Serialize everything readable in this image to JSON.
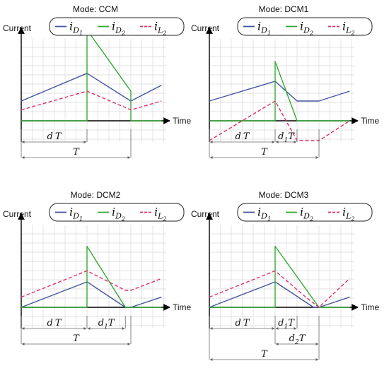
{
  "legend": [
    {
      "key": "iD1",
      "text": "i",
      "sub": "D",
      "subsub": "1",
      "color": "#4455a0",
      "dash": false
    },
    {
      "key": "iD2",
      "text": "i",
      "sub": "D",
      "subsub": "2",
      "color": "#33aa33",
      "dash": false
    },
    {
      "key": "iL2",
      "text": "i",
      "sub": "L",
      "subsub": "2",
      "color": "#e0306a",
      "dash": true
    }
  ],
  "colors": {
    "grid": "#d8d8d8",
    "axis": "#000000"
  },
  "chart_data": [
    {
      "type": "line",
      "title": "Mode: CCM",
      "xlabel": "Time",
      "ylabel": "Current",
      "grid": true,
      "legend_position": "top",
      "xlim": [
        0,
        1.28
      ],
      "ylim": [
        -0.2,
        1.2
      ],
      "series": [
        {
          "key": "iD1",
          "x": [
            0,
            0.6,
            1.0,
            1.28
          ],
          "y": [
            0.2,
            0.48,
            0.2,
            0.36
          ]
        },
        {
          "key": "iD2",
          "x": [
            0,
            0.6,
            0.6,
            1.0,
            1.0,
            1.28
          ],
          "y": [
            0,
            0,
            0.92,
            0.3,
            0,
            0
          ]
        },
        {
          "key": "iL2",
          "x": [
            0,
            0.6,
            1.0,
            1.28
          ],
          "y": [
            0.11,
            0.3,
            0.11,
            0.2
          ]
        }
      ],
      "dimensions": [
        {
          "label": "d",
          "sym": "T",
          "sub": "",
          "from": 0,
          "to": 0.6,
          "row": 1
        },
        {
          "label": "",
          "sym": "T",
          "sub": "",
          "from": 0,
          "to": 1.0,
          "row": 2
        }
      ]
    },
    {
      "type": "line",
      "title": "Mode: DCM1",
      "xlabel": "Time",
      "ylabel": "Current",
      "grid": true,
      "legend_position": "top",
      "xlim": [
        0,
        1.28
      ],
      "ylim": [
        -0.2,
        1.2
      ],
      "series": [
        {
          "key": "iD1",
          "x": [
            0,
            0.6,
            0.8,
            1.0,
            1.28
          ],
          "y": [
            0.2,
            0.4,
            0.2,
            0.2,
            0.3
          ]
        },
        {
          "key": "iD2",
          "x": [
            0,
            0.6,
            0.6,
            0.8,
            0.8,
            1.28
          ],
          "y": [
            0,
            0,
            0.6,
            0,
            0,
            0
          ]
        },
        {
          "key": "iL2",
          "x": [
            0,
            0.6,
            0.8,
            1.0,
            1.28
          ],
          "y": [
            -0.2,
            0.2,
            -0.2,
            -0.2,
            0
          ]
        }
      ],
      "dimensions": [
        {
          "label": "d",
          "sym": "T",
          "sub": "",
          "from": 0,
          "to": 0.6,
          "row": 1
        },
        {
          "label": "d",
          "sym": "T",
          "sub": "1",
          "from": 0.6,
          "to": 0.8,
          "row": 1
        },
        {
          "label": "",
          "sym": "T",
          "sub": "",
          "from": 0,
          "to": 1.0,
          "row": 2
        }
      ]
    },
    {
      "type": "line",
      "title": "Mode: DCM2",
      "xlabel": "Time",
      "ylabel": "Current",
      "grid": true,
      "legend_position": "top",
      "xlim": [
        0,
        1.28
      ],
      "ylim": [
        -0.2,
        1.2
      ],
      "series": [
        {
          "key": "iD1",
          "x": [
            0,
            0.6,
            0.95,
            1.0,
            1.28
          ],
          "y": [
            0,
            0.3,
            0,
            0,
            0.12
          ]
        },
        {
          "key": "iD2",
          "x": [
            0,
            0.6,
            0.6,
            0.95,
            0.95,
            1.28
          ],
          "y": [
            0,
            0,
            0.72,
            0,
            0,
            0
          ]
        },
        {
          "key": "iL2",
          "x": [
            0,
            0.6,
            0.95,
            1.0,
            1.28
          ],
          "y": [
            0.12,
            0.43,
            0.2,
            0.2,
            0.34
          ]
        }
      ],
      "dimensions": [
        {
          "label": "d",
          "sym": "T",
          "sub": "",
          "from": 0,
          "to": 0.6,
          "row": 1
        },
        {
          "label": "d",
          "sym": "T",
          "sub": "1",
          "from": 0.6,
          "to": 0.95,
          "row": 1
        },
        {
          "label": "",
          "sym": "T",
          "sub": "",
          "from": 0,
          "to": 1.0,
          "row": 2
        }
      ]
    },
    {
      "type": "line",
      "title": "Mode: DCM3",
      "xlabel": "Time",
      "ylabel": "Current",
      "grid": true,
      "legend_position": "top",
      "xlim": [
        0,
        1.28
      ],
      "ylim": [
        -0.2,
        1.2
      ],
      "series": [
        {
          "key": "iD1",
          "x": [
            0,
            0.6,
            0.95,
            1.0,
            1.28
          ],
          "y": [
            0,
            0.3,
            0,
            0,
            0.12
          ]
        },
        {
          "key": "iD2",
          "x": [
            0,
            0.6,
            0.6,
            1.0,
            1.0,
            1.28
          ],
          "y": [
            0,
            0,
            0.72,
            0,
            0,
            0
          ]
        },
        {
          "key": "iL2",
          "x": [
            0,
            0.6,
            0.88,
            1.0,
            1.28
          ],
          "y": [
            0.12,
            0.43,
            0.12,
            0,
            0.34
          ]
        }
      ],
      "dimensions": [
        {
          "label": "d",
          "sym": "T",
          "sub": "",
          "from": 0,
          "to": 0.6,
          "row": 1
        },
        {
          "label": "d",
          "sym": "T",
          "sub": "1",
          "from": 0.6,
          "to": 0.8,
          "row": 1
        },
        {
          "label": "d",
          "sym": "T",
          "sub": "2",
          "from": 0.6,
          "to": 1.0,
          "row": 2
        },
        {
          "label": "",
          "sym": "T",
          "sub": "",
          "from": 0,
          "to": 1.0,
          "row": 3
        }
      ]
    }
  ]
}
